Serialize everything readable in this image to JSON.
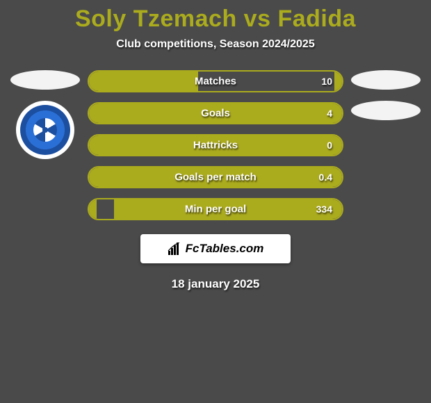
{
  "background_color": "#4a4a4a",
  "title": {
    "text": "Soly Tzemach vs Fadida",
    "color": "#abab1e",
    "fontsize": 34,
    "fontweight": 800
  },
  "subtitle": {
    "text": "Club competitions, Season 2024/2025",
    "color": "#ffffff",
    "fontsize": 16
  },
  "left_player": {
    "avatar_type": "oval_placeholder",
    "club_badge": {
      "outer": "#ffffff",
      "ring": "#1d4fa0",
      "inner": "#2a6fd6"
    }
  },
  "right_player": {
    "avatar_type": "oval_placeholder",
    "secondary_oval": true
  },
  "bar_style": {
    "height": 32,
    "radius": 16,
    "left_color": "#abab1e",
    "right_color": "#abab1e",
    "border_color": "#abab1e",
    "border_width": 2,
    "label_color": "#ffffff",
    "label_fontsize": 15
  },
  "stats": [
    {
      "label": "Matches",
      "left_pct": 43,
      "right_pct": 3,
      "right_value": "10"
    },
    {
      "label": "Goals",
      "left_pct": 97,
      "right_pct": 3,
      "right_value": "4"
    },
    {
      "label": "Hattricks",
      "left_pct": 97,
      "right_pct": 3,
      "right_value": "0"
    },
    {
      "label": "Goals per match",
      "left_pct": 64,
      "right_pct": 36,
      "right_value": "0.4"
    },
    {
      "label": "Min per goal",
      "left_pct": 3,
      "right_pct": 90,
      "right_value": "334"
    }
  ],
  "attribution": {
    "text": "FcTables.com",
    "background": "#ffffff",
    "text_color": "#000000"
  },
  "date": {
    "text": "18 january 2025",
    "color": "#ffffff",
    "fontsize": 17
  }
}
